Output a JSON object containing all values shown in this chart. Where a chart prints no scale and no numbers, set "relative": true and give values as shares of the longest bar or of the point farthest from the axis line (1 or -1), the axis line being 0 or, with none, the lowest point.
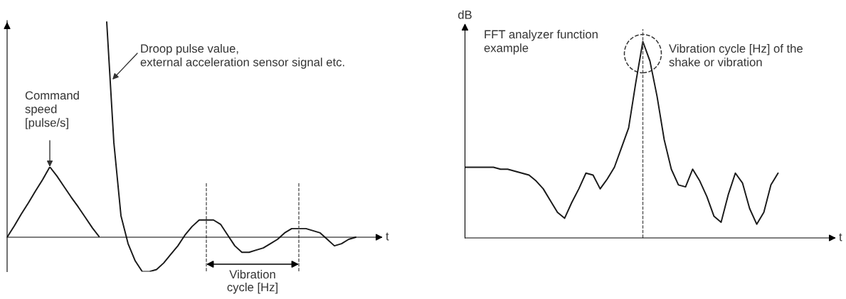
{
  "chart_data": [
    {
      "type": "line",
      "relative": true,
      "marker": "none",
      "line_style": "solid",
      "categories": [
        null,
        null,
        null,
        null,
        null,
        null,
        null,
        null,
        null,
        null,
        null,
        null,
        null,
        null
      ],
      "series": [
        {
          "color": "#1a1a1a",
          "values": [
            0,
            0.16,
            0.33,
            0.49,
            0.66,
            0.82,
            1.0,
            0.87,
            0.72,
            0.57,
            0.43,
            0.28,
            0.13,
            0
          ]
        }
      ],
      "annotations": [
        "Command\nspeed\n[pulse/s]"
      ]
    },
    {
      "type": "line",
      "relative": true,
      "xlabel": "t",
      "marker": "none",
      "line_style": "solid",
      "categories": [
        null,
        null,
        null,
        null,
        null,
        null,
        null,
        null,
        null,
        null,
        null,
        null,
        null,
        null,
        null,
        null,
        null,
        null,
        null,
        null,
        null,
        null,
        null,
        null,
        null,
        null,
        null,
        null,
        null,
        null,
        null,
        null,
        null,
        null,
        null,
        null
      ],
      "series": [
        {
          "color": "#1a1a1a",
          "values": [
            1.0,
            0.44,
            0.1,
            -0.03,
            -0.11,
            -0.16,
            -0.16,
            -0.15,
            -0.12,
            -0.08,
            -0.04,
            0.01,
            0.05,
            0.08,
            0.08,
            0.08,
            0.06,
            0.01,
            -0.04,
            -0.07,
            -0.07,
            -0.06,
            -0.05,
            -0.03,
            -0.01,
            0.02,
            0.04,
            0.04,
            0.04,
            0.03,
            0.02,
            -0.01,
            -0.04,
            -0.03,
            -0.01,
            0
          ]
        }
      ],
      "annotations": [
        "Droop pulse value,\nexternal acceleration sensor signal etc.",
        "Vibration\ncycle [Hz]"
      ]
    },
    {
      "type": "line",
      "relative": true,
      "xlabel": "t",
      "ylabel": "dB",
      "marker": "none",
      "line_style": "solid",
      "categories": [
        null,
        null,
        null,
        null,
        null,
        null,
        null,
        null,
        null,
        null,
        null,
        null,
        null,
        null,
        null,
        null,
        null,
        null,
        null,
        null,
        null,
        null,
        null,
        null,
        null,
        null,
        null,
        null,
        null,
        null,
        null,
        null,
        null,
        null,
        null,
        null,
        null,
        null,
        null,
        null,
        null,
        null,
        null,
        null,
        null
      ],
      "series": [
        {
          "color": "#1a1a1a",
          "values": [
            0.36,
            0.36,
            0.36,
            0.36,
            0.36,
            0.35,
            0.35,
            0.34,
            0.33,
            0.32,
            0.29,
            0.25,
            0.19,
            0.13,
            0.1,
            0.18,
            0.25,
            0.33,
            0.32,
            0.25,
            0.3,
            0.36,
            0.46,
            0.56,
            0.79,
            1.0,
            0.9,
            0.72,
            0.5,
            0.35,
            0.27,
            0.26,
            0.35,
            0.29,
            0.21,
            0.11,
            0.08,
            0.22,
            0.33,
            0.28,
            0.15,
            0.07,
            0.13,
            0.27,
            0.33
          ]
        }
      ],
      "annotations": [
        "FFT analyzer function\nexample",
        "Vibration cycle [Hz] of the\nshake or vibration"
      ]
    }
  ]
}
